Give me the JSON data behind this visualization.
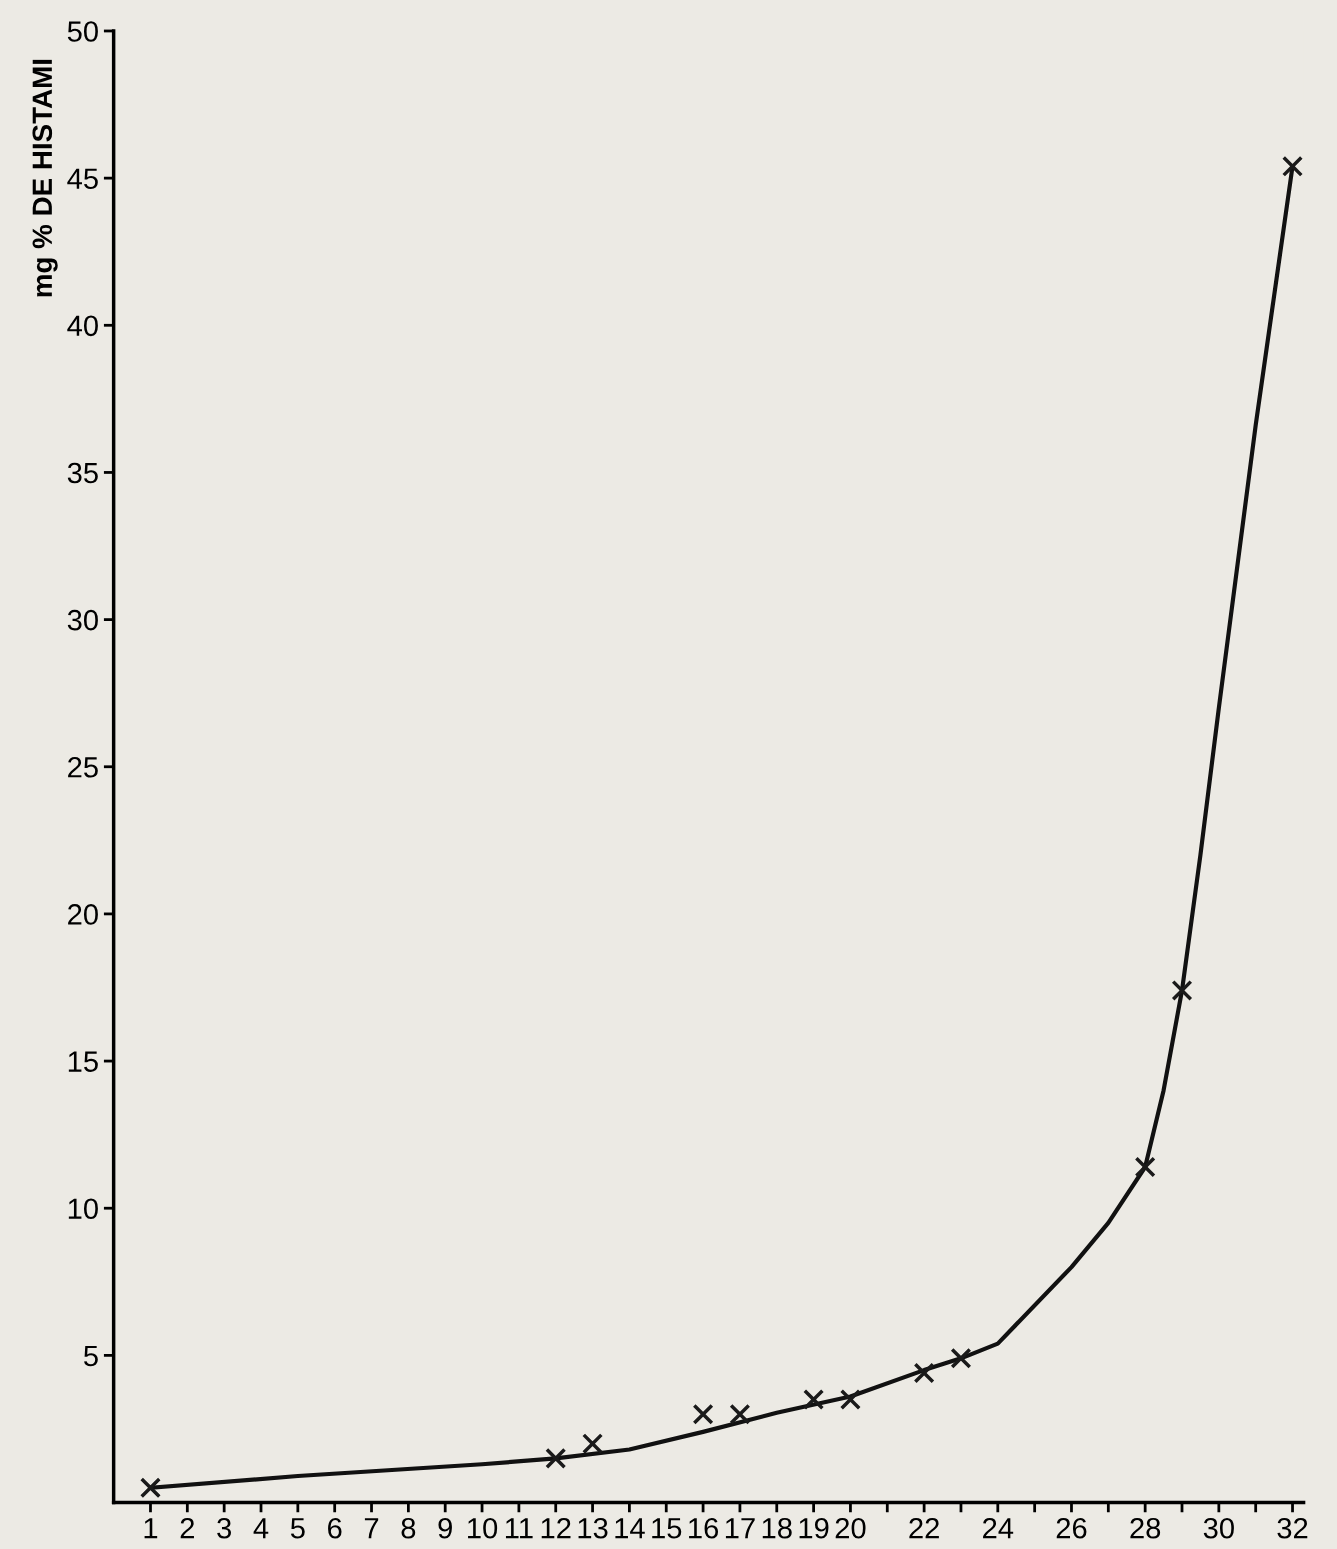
{
  "chart_data": {
    "type": "scatter",
    "ylabel": "mg % DE HISTAMI",
    "x": [
      1,
      12,
      13,
      16,
      17,
      19,
      20,
      22,
      23,
      28,
      29,
      32
    ],
    "series": [
      {
        "color": "#1a1a1a",
        "marker": "cross",
        "values": [
          0.5,
          1.5,
          2.0,
          3.0,
          3.0,
          3.5,
          3.5,
          4.4,
          4.9,
          11.4,
          17.4,
          45.4
        ]
      },
      {
        "type": "line",
        "color": "#111111",
        "marker": "none",
        "line_style": "solid",
        "x": [
          1,
          5,
          10,
          12,
          14,
          16,
          18,
          20,
          22,
          23,
          24,
          26,
          27,
          28,
          28.5,
          29,
          29.5,
          30,
          31,
          32
        ],
        "values": [
          0.5,
          0.9,
          1.3,
          1.5,
          1.8,
          2.4,
          3.05,
          3.6,
          4.5,
          4.9,
          5.4,
          8.0,
          9.5,
          11.4,
          14,
          17.4,
          22,
          27,
          36.6,
          45.4
        ]
      }
    ],
    "xlim": [
      0,
      32.3
    ],
    "ylim": [
      0,
      50
    ],
    "xticks": [
      1,
      2,
      3,
      4,
      5,
      6,
      7,
      8,
      9,
      10,
      11,
      12,
      13,
      14,
      15,
      16,
      17,
      18,
      19,
      20,
      {
        "value": 21,
        "label": null
      },
      22,
      {
        "value": 23,
        "label": null
      },
      24,
      {
        "value": 25,
        "label": null
      },
      26,
      {
        "value": 27,
        "label": null
      },
      28,
      {
        "value": 29,
        "label": null
      },
      30,
      {
        "value": 31,
        "label": null
      },
      32
    ],
    "yticks": [
      5,
      10,
      15,
      20,
      25,
      30,
      35,
      40,
      45,
      50
    ],
    "grid": false,
    "legend": false
  }
}
